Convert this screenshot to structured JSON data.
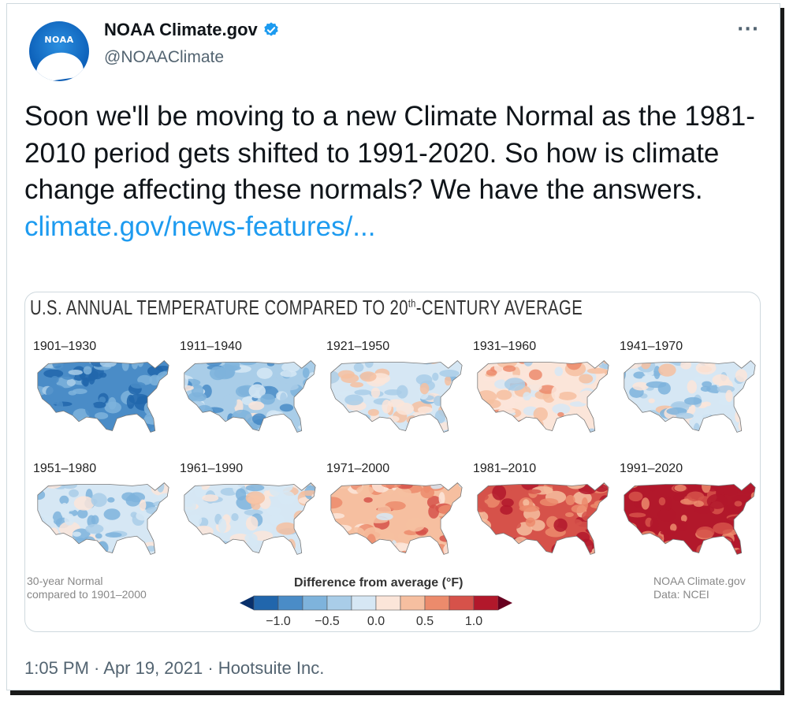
{
  "author": {
    "name": "NOAA Climate.gov",
    "handle": "@NOAAClimate",
    "avatar_text": "NOAA",
    "verified_icon": "verified-badge-icon"
  },
  "tweet": {
    "text": "Soon we'll be moving to a new Climate Normal as the 1981-2010 period gets shifted to 1991-2020. So how is climate change affecting these normals? We have the answers.",
    "link": "climate.gov/news-features/..."
  },
  "more_label": "···",
  "card": {
    "title_main": "U.S. ANNUAL TEMPERATURE COMPARED TO 20",
    "title_sup": "th",
    "title_end": "-CENTURY AVERAGE",
    "periods": [
      "1901–1930",
      "1911–1940",
      "1921–1950",
      "1931–1960",
      "1941–1970",
      "1951–1980",
      "1961–1990",
      "1971–2000",
      "1981–2010",
      "1991–2020"
    ],
    "note_left": [
      "30-year Normal",
      "compared to 1901–2000"
    ],
    "note_right": [
      "NOAA Climate.gov",
      "Data: NCEI"
    ],
    "legend_title": "Difference from average (°F)",
    "legend_ticks": [
      "−1.0",
      "−0.5",
      "0.0",
      "0.5",
      "1.0"
    ],
    "legend_colors": [
      "#2166ac",
      "#4a8cc7",
      "#7eb3dc",
      "#a9cde8",
      "#d6e7f4",
      "#fbe5d9",
      "#f6bfa0",
      "#ec8b6c",
      "#d6524a",
      "#b2182b"
    ],
    "anomaly_levels": [
      -0.85,
      -0.45,
      -0.05,
      0.15,
      -0.2,
      -0.25,
      -0.1,
      0.4,
      0.8,
      1.0
    ]
  },
  "meta": "1:05 PM · Apr 19, 2021 · Hootsuite Inc."
}
